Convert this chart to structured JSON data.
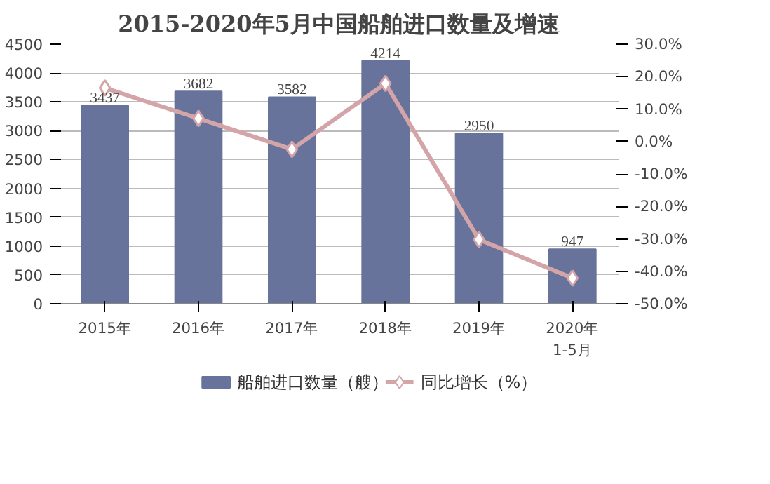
{
  "chart_data": {
    "type": "bar",
    "title": "2015-2020年5月中国船舶进口数量及增速",
    "categories": [
      "2015年",
      "2016年",
      "2017年",
      "2018年",
      "2019年",
      "2020年\n1-5月"
    ],
    "series": [
      {
        "name": "船舶进口数量（艘）",
        "color": "#67739b",
        "values": [
          3437,
          3682,
          3582,
          4214,
          2950,
          947
        ],
        "data_labels": true
      },
      {
        "name": "同比增长（%）",
        "type": "line",
        "axis": "y2",
        "color": "#d4a5a8",
        "marker": "diamond",
        "values": [
          16.5,
          7.1,
          -2.4,
          17.9,
          -30.2,
          -42.1
        ]
      }
    ],
    "ylim": [
      0,
      4500
    ],
    "yticks": [
      0,
      500,
      1000,
      1500,
      2000,
      2500,
      3000,
      3500,
      4000,
      4500
    ],
    "y2lim": [
      -50,
      30
    ],
    "y2ticks": [
      {
        "value": -50,
        "label": "-50.0%"
      },
      {
        "value": -40,
        "label": "-40.0%"
      },
      {
        "value": -30,
        "label": "-30.0%"
      },
      {
        "value": -20,
        "label": "-20.0%"
      },
      {
        "value": -10,
        "label": "-10.0%"
      },
      {
        "value": 0,
        "label": "0.0%"
      },
      {
        "value": 10,
        "label": "10.0%"
      },
      {
        "value": 20,
        "label": "20.0%"
      },
      {
        "value": 30,
        "label": "30.0%"
      }
    ],
    "grid": "y",
    "legend": "bottom"
  }
}
